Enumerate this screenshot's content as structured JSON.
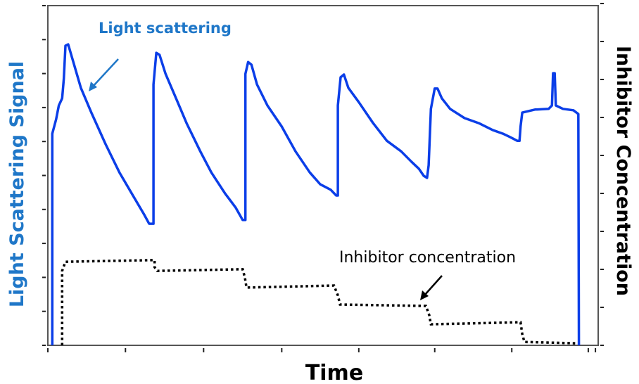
{
  "chart_data": {
    "type": "line",
    "title": "",
    "xlabel": "Time",
    "ylabel": "Light Scattering Signal",
    "ylabel_right": "Inhibitor Concentration",
    "xlim": [
      0,
      100
    ],
    "ylim": [
      0,
      100
    ],
    "x_ticks": [
      0,
      14.1,
      28.3,
      42.5,
      56.5,
      70.3,
      84.3,
      98.2,
      99.5
    ],
    "y_left_tick_count": 11,
    "y_right_tick_count": 10,
    "grid": false,
    "colors": {
      "signal": "#0b3ee8",
      "inhibitor": "#000000",
      "signal_label": "#1f77c8"
    },
    "annotations": [
      {
        "text": "Light scattering",
        "series": "Light scattering"
      },
      {
        "text": "Inhibitor concentration",
        "series": "Inhibitor concentration"
      }
    ],
    "series": [
      {
        "name": "Light scattering",
        "style": "solid",
        "x": [
          0.8,
          0.8,
          1.5,
          2.0,
          2.6,
          2.9,
          3.2,
          3.7,
          4.5,
          6.0,
          7.9,
          10.5,
          13.0,
          15.6,
          17.5,
          18.4,
          19.2,
          19.2,
          19.7,
          20.3,
          21.4,
          23.3,
          25.2,
          27.7,
          29.7,
          32.2,
          34.1,
          35.4,
          35.9,
          35.9,
          36.4,
          37.0,
          38.0,
          39.9,
          42.5,
          45.0,
          47.6,
          49.5,
          51.4,
          52.4,
          52.7,
          52.7,
          53.2,
          53.8,
          54.6,
          56.5,
          59.1,
          61.6,
          64.2,
          66.1,
          67.4,
          68.3,
          68.9,
          69.2,
          69.6,
          70.3,
          70.8,
          71.6,
          73.1,
          75.7,
          78.3,
          80.8,
          82.7,
          84.0,
          85.3,
          85.7,
          85.9,
          86.2,
          88.5,
          91.0,
          91.6,
          91.8,
          92.1,
          92.3,
          93.6,
          95.5,
          96.4,
          96.5
        ],
        "y": [
          0,
          62.3,
          66.5,
          70.6,
          72.7,
          78.5,
          88.2,
          88.6,
          84.1,
          75.8,
          68.5,
          59.2,
          50.9,
          43.7,
          38.5,
          35.8,
          35.8,
          76.8,
          86.1,
          85.5,
          79.9,
          72.7,
          65.4,
          57.1,
          50.9,
          44.7,
          40.6,
          36.9,
          36.9,
          79.9,
          83.4,
          82.6,
          76.8,
          70.6,
          64.4,
          57.1,
          50.9,
          47.4,
          45.8,
          44.1,
          44.1,
          70.6,
          78.9,
          79.7,
          75.8,
          71.6,
          65.4,
          60.2,
          57.1,
          54.0,
          52.0,
          49.9,
          49.3,
          53.0,
          69.6,
          75.6,
          75.6,
          72.7,
          69.6,
          66.9,
          65.4,
          63.4,
          62.3,
          61.3,
          60.2,
          60.2,
          64.4,
          68.5,
          69.4,
          69.6,
          70.6,
          80.1,
          80.1,
          70.6,
          69.6,
          69.2,
          68.1,
          0
        ]
      },
      {
        "name": "Inhibitor concentration",
        "style": "dotted",
        "x": [
          2.6,
          2.6,
          3.2,
          19.4,
          19.4,
          19.9,
          35.4,
          35.8,
          36.1,
          52.0,
          52.7,
          53.1,
          68.7,
          69.3,
          69.6,
          85.9,
          86.2,
          86.6,
          95.9
        ],
        "y": [
          0,
          21.9,
          24.6,
          25.1,
          23.0,
          21.9,
          22.4,
          19.9,
          17.0,
          17.6,
          14.7,
          12.0,
          11.6,
          8.9,
          6.2,
          6.8,
          3.3,
          1.0,
          0.6
        ]
      }
    ]
  }
}
